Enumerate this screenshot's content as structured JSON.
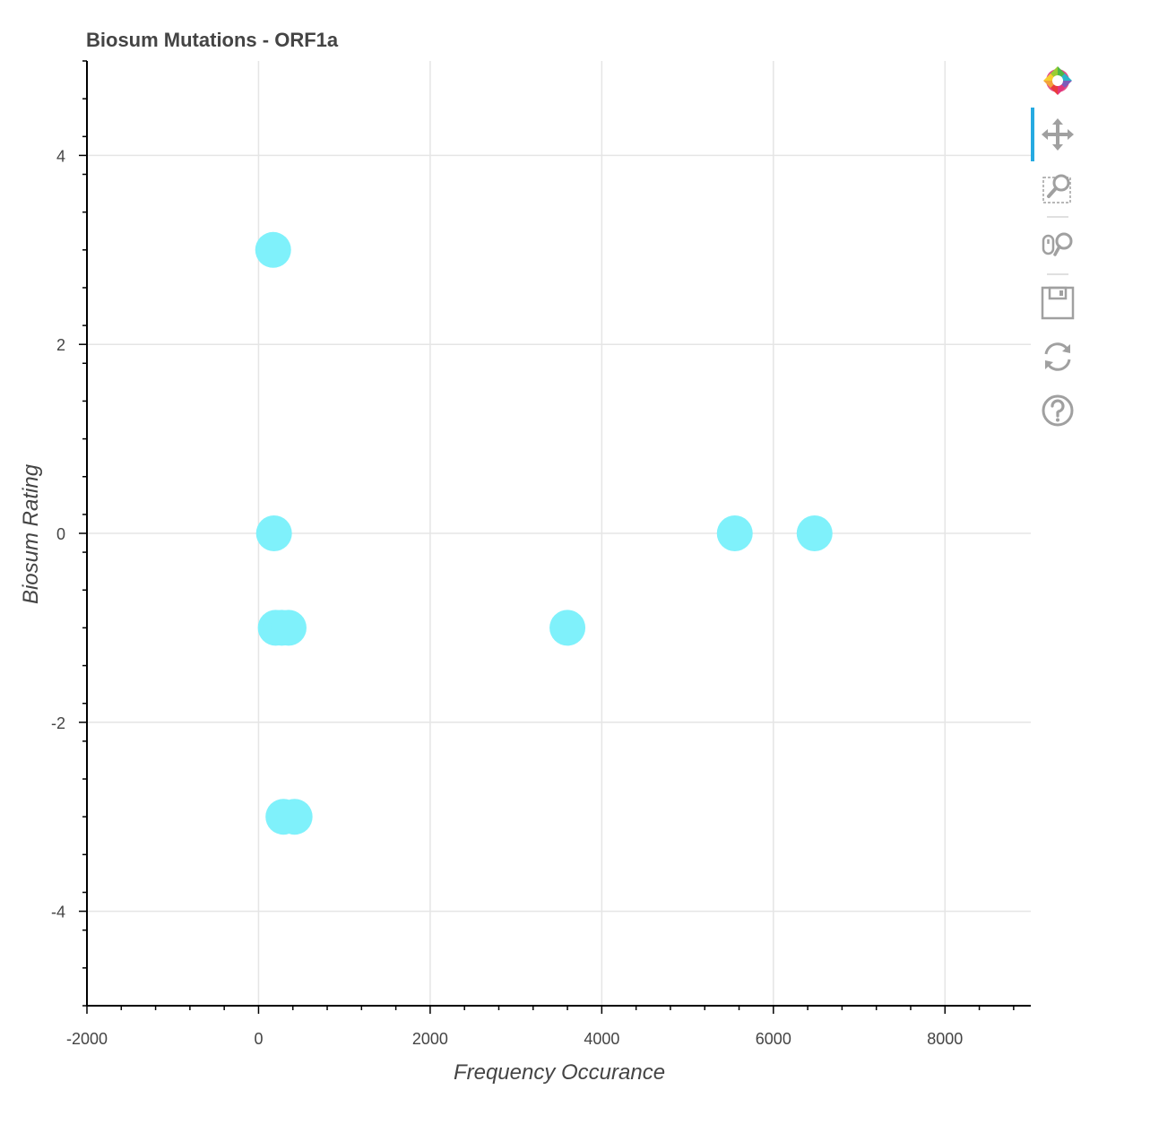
{
  "chart_data": {
    "type": "scatter",
    "title": "Biosum Mutations - ORF1a",
    "xlabel": "Frequency Occurance",
    "ylabel": "Biosum Rating",
    "xlim": [
      -2000,
      9000
    ],
    "ylim": [
      -5,
      5
    ],
    "x_ticks": [
      -2000,
      0,
      2000,
      4000,
      6000,
      8000
    ],
    "y_ticks": [
      -4,
      -2,
      0,
      2,
      4
    ],
    "grid": true,
    "point_color": "#7ff1fb",
    "points": [
      {
        "x": 170,
        "y": 3
      },
      {
        "x": 180,
        "y": 0
      },
      {
        "x": 200,
        "y": -1
      },
      {
        "x": 270,
        "y": -1
      },
      {
        "x": 350,
        "y": -1
      },
      {
        "x": 290,
        "y": -3
      },
      {
        "x": 420,
        "y": -3
      },
      {
        "x": 3600,
        "y": -1
      },
      {
        "x": 5550,
        "y": 0
      },
      {
        "x": 6480,
        "y": 0
      }
    ]
  },
  "toolbar": {
    "tools": [
      {
        "name": "bokeh-logo-icon",
        "active": false
      },
      {
        "name": "pan-tool-icon",
        "active": true
      },
      {
        "name": "box-zoom-tool-icon",
        "active": false
      },
      {
        "name": "wheel-zoom-tool-icon",
        "active": false
      },
      {
        "name": "save-tool-icon",
        "active": false
      },
      {
        "name": "reset-tool-icon",
        "active": false
      },
      {
        "name": "help-tool-icon",
        "active": false
      }
    ]
  }
}
